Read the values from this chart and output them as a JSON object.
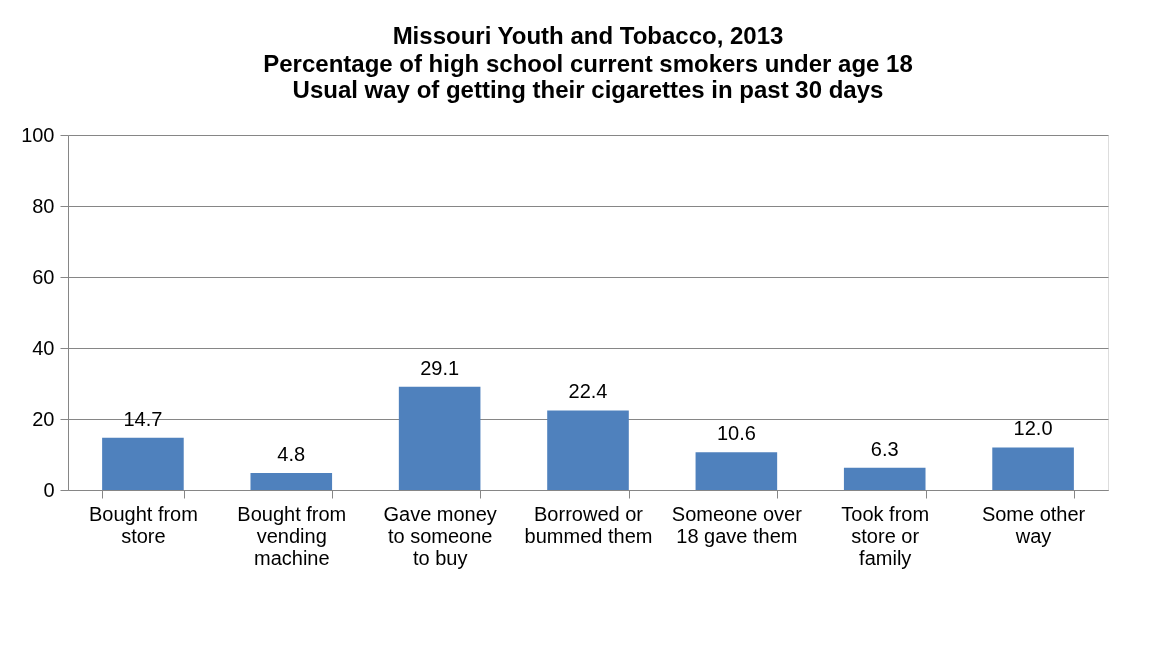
{
  "chart_data": {
    "type": "bar",
    "title": "Missouri Youth and Tobacco, 2013",
    "subtitle": [
      "Percentage of high school current smokers under age 18",
      "Usual way of getting their cigarettes in past 30 days"
    ],
    "categories": [
      "Bought from store",
      "Bought from vending machine",
      "Gave money to someone to buy",
      "Borrowed or bummed them",
      "Someone over 18 gave them",
      "Took from store or family",
      "Some other way"
    ],
    "values": [
      14.7,
      4.8,
      29.1,
      22.4,
      10.6,
      6.3,
      12.0
    ],
    "value_labels": [
      "14.7",
      "4.8",
      "29.1",
      "22.4",
      "10.6",
      "6.3",
      "12.0"
    ],
    "color": "#4f81bd",
    "ylim": [
      0,
      100
    ],
    "yticks": [
      0,
      20,
      40,
      60,
      80,
      100
    ],
    "grid": "y"
  }
}
